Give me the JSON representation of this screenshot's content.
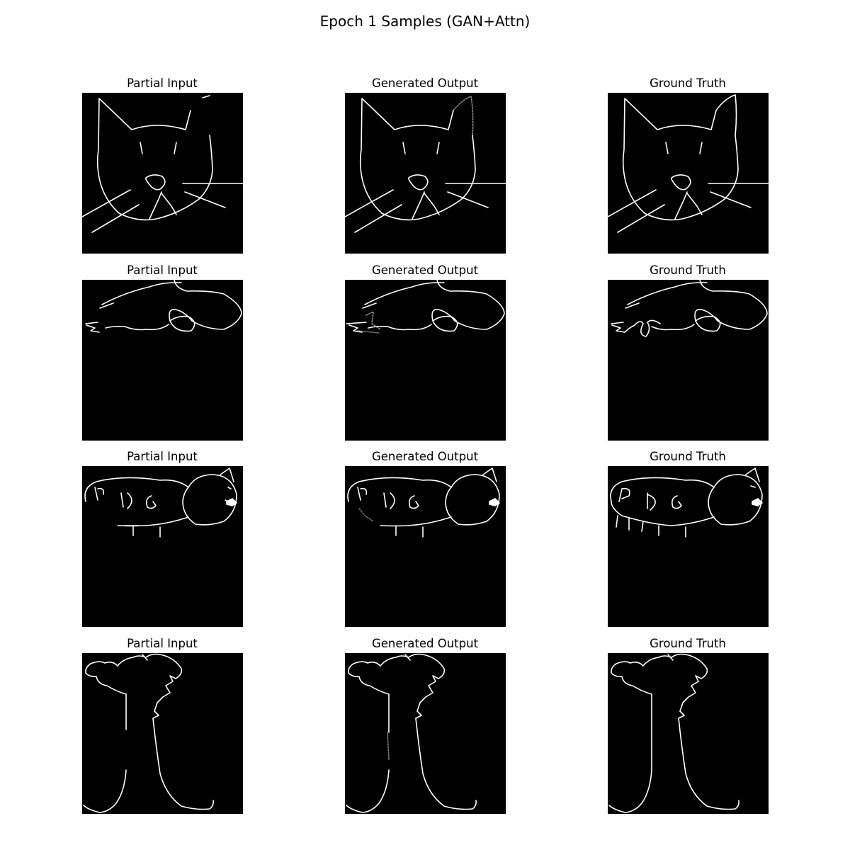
{
  "figure": {
    "title": "Epoch 1 Samples (GAN+Attn)"
  },
  "columns": [
    {
      "title": "Partial Input"
    },
    {
      "title": "Generated Output"
    },
    {
      "title": "Ground Truth"
    }
  ],
  "rows": [
    {
      "subject": "cat-face-sketch"
    },
    {
      "subject": "cloud-blob-sketch"
    },
    {
      "subject": "dog-lettered-sketch"
    },
    {
      "subject": "tree-or-mushroom-sketch"
    }
  ],
  "colors": {
    "background": "#ffffff",
    "panel_background": "#000000",
    "stroke": "#ffffff"
  }
}
